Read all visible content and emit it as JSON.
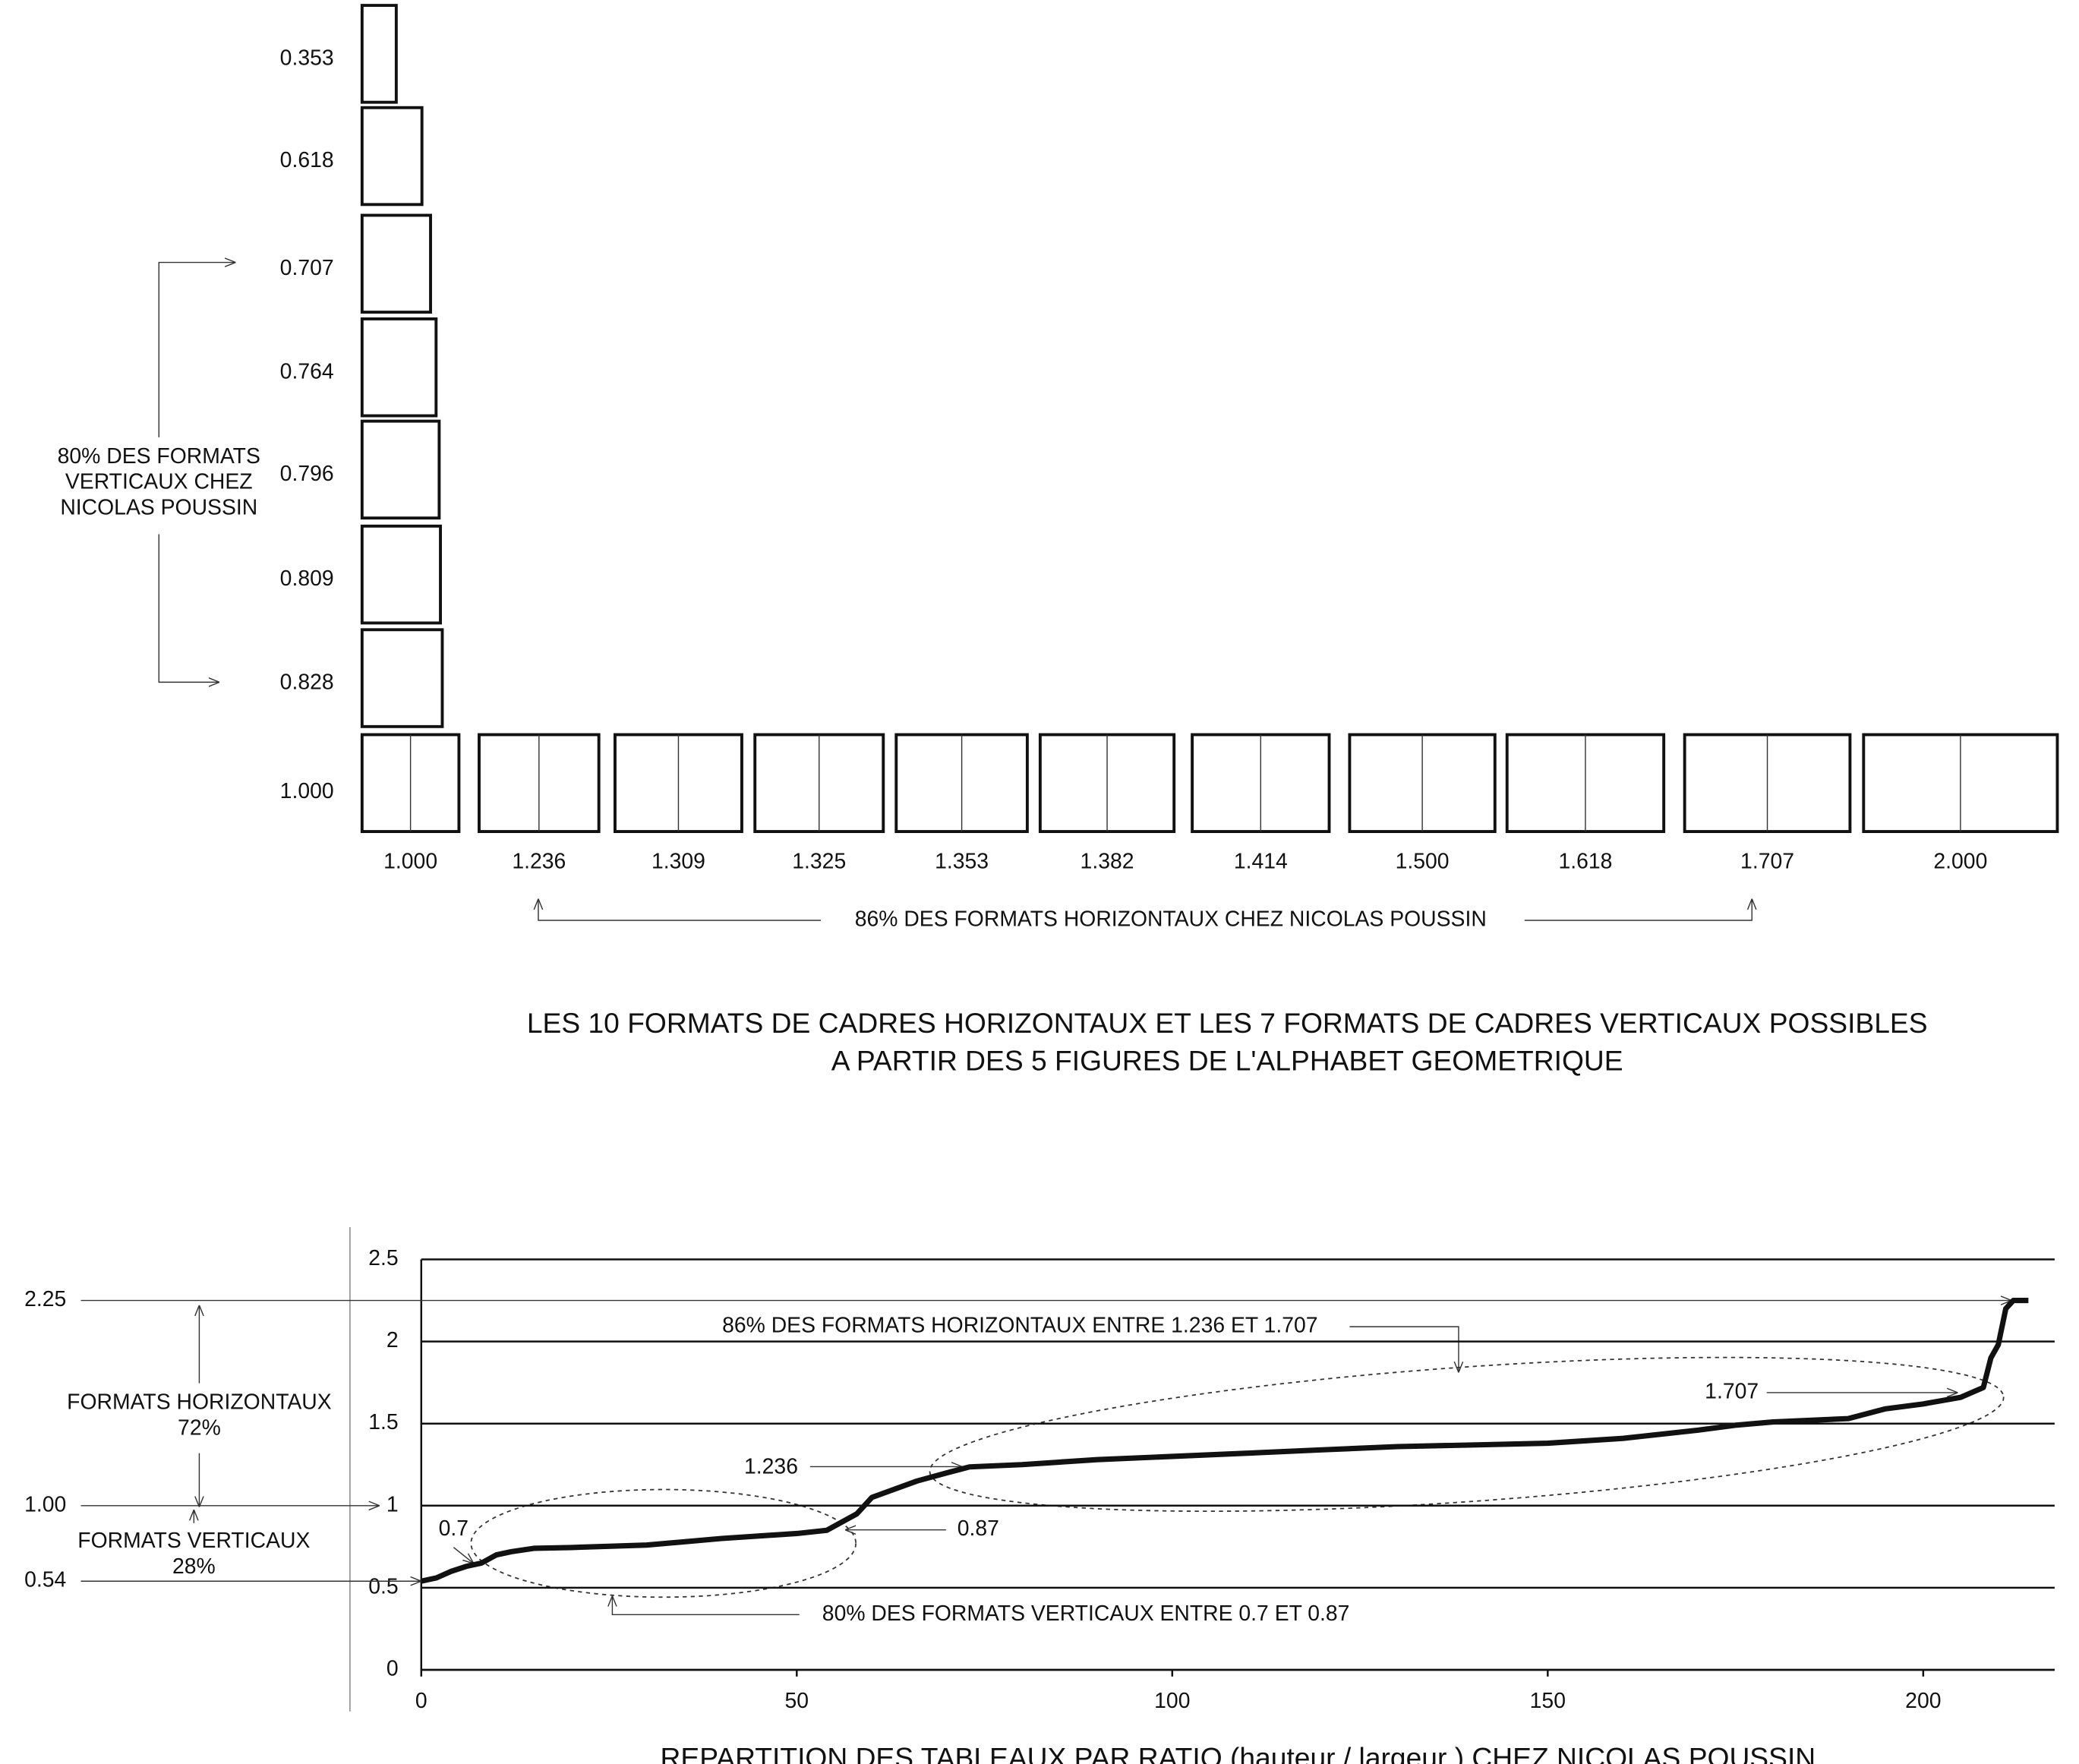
{
  "diagram": {
    "vertical_formats": [
      0.353,
      0.618,
      0.707,
      0.764,
      0.796,
      0.809,
      0.828,
      {
        "value": 1,
        "label": "1.000"
      }
    ],
    "horizontal_formats": [
      {
        "value": 1,
        "label": "1.000"
      },
      1.236,
      1.309,
      1.325,
      1.353,
      1.382,
      1.414,
      {
        "value": 1.5,
        "label": "1.500"
      },
      1.618,
      1.707,
      {
        "value": 2,
        "label": "2.000"
      }
    ],
    "vertical_note": [
      "80% DES FORMATS",
      "VERTICAUX CHEZ",
      "NICOLAS POUSSIN"
    ],
    "horizontal_note": "86% DES FORMATS HORIZONTAUX  CHEZ NICOLAS POUSSIN",
    "title": [
      "LES 10 FORMATS DE CADRES HORIZONTAUX  ET LES 7 FORMATS DE CADRES VERTICAUX POSSIBLES",
      "A PARTIR DES 5 FIGURES DE L'ALPHABET GEOMETRIQUE"
    ]
  },
  "chart_data": {
    "type": "line",
    "title": "REPARTITION DES TABLEAUX PAR  RATIO (hauteur / largeur )    CHEZ NICOLAS POUSSIN",
    "x": [
      0,
      2,
      4,
      6,
      8,
      10,
      12,
      15,
      20,
      30,
      40,
      50,
      54,
      56,
      58,
      60,
      63,
      66,
      70,
      73,
      80,
      90,
      100,
      110,
      120,
      130,
      140,
      150,
      160,
      170,
      175,
      180,
      190,
      195,
      200,
      205,
      207,
      208,
      209,
      210,
      211,
      212,
      214
    ],
    "values": [
      0.54,
      0.56,
      0.6,
      0.63,
      0.65,
      0.7,
      0.72,
      0.74,
      0.745,
      0.76,
      0.8,
      0.83,
      0.85,
      0.9,
      0.95,
      1.05,
      1.1,
      1.15,
      1.2,
      1.236,
      1.25,
      1.28,
      1.3,
      1.32,
      1.34,
      1.36,
      1.37,
      1.38,
      1.41,
      1.46,
      1.49,
      1.51,
      1.53,
      1.59,
      1.62,
      1.66,
      1.7,
      1.72,
      1.9,
      1.98,
      2.2,
      2.25,
      2.25
    ],
    "color": "#111111",
    "xlim": [
      0,
      217.5
    ],
    "ylim": [
      0,
      2.5
    ],
    "xticks": [
      0,
      50,
      100,
      150,
      200
    ],
    "yticks": [
      0,
      0.5,
      1,
      1.5,
      2,
      2.5
    ],
    "grid": true,
    "reference_lines": [
      2.25,
      {
        "value": 1,
        "label": "1.00"
      },
      0.54
    ],
    "annotations": {
      "horizontal_share": [
        "FORMATS HORIZONTAUX",
        "72%"
      ],
      "vertical_share": [
        "FORMATS VERTICAUX",
        "28%"
      ],
      "horizontal_range": "86% DES FORMATS HORIZONTAUX ENTRE 1.236 ET 1.707",
      "vertical_range": "80% DES FORMATS VERTICAUX ENTRE 0.7 ET 0.87",
      "point_1707": "1.707",
      "point_1236": "1.236",
      "point_07": "0.7",
      "point_087": "0.87"
    }
  }
}
